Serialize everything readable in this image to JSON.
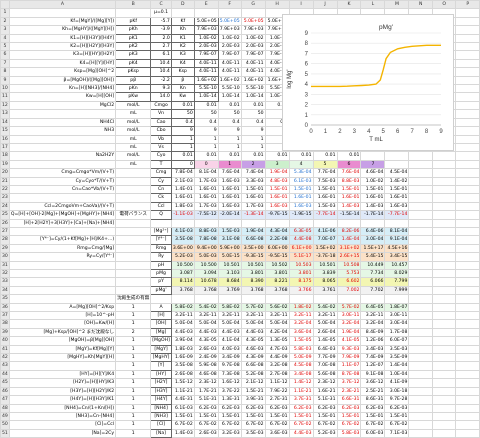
{
  "columns": [
    "A",
    "B",
    "C",
    "D",
    "E",
    "F",
    "G",
    "H",
    "I",
    "J",
    "K",
    "L",
    "M",
    "N",
    "O",
    "P",
    "Q",
    "R",
    "S",
    "T",
    "U",
    "V",
    "W",
    "X",
    "Y",
    "Z"
  ],
  "mu_label": "μ=0.1",
  "pk_rows": [
    {
      "label": "Kf=[MgY]/([Mg][Y])",
      "p": "pKf",
      "pv": "-5.7",
      "k": "Kf",
      "kv": "5.0E+05",
      "cells": [
        "5.0E+05",
        "5.0E+05",
        "5.0E+05",
        "5.0E+05",
        "5.0E+05",
        "5.0E+05",
        "5.0E+05"
      ]
    },
    {
      "label": "Kh=[MgHY]/([MgY][H])",
      "p": "pKh",
      "pv": "-3.9",
      "k": "Kh",
      "kv": "7.9E+03",
      "cells": [
        "7.9E+03",
        "7.9E+03",
        "7.9E+03",
        "7.9E+03",
        "7.9E+03",
        "7.9E+03",
        "7.9E+03"
      ]
    },
    {
      "label": "K1=[H][H3Y]/[H4Y]",
      "p": "pK1",
      "pv": "2.0",
      "k": "K1",
      "kv": "1.0E-02",
      "cells": [
        "1.0E-02",
        "1.0E-02",
        "1.0E-02",
        "1.0E-02",
        "1.0E-02",
        "1.0E-02",
        "1.0E-02"
      ]
    },
    {
      "label": "K2=[H][H2Y]/[H3Y]",
      "p": "pK2",
      "pv": "2.7",
      "k": "K2",
      "kv": "2.0E-03",
      "cells": [
        "2.0E-03",
        "2.0E-03",
        "2.0E-03",
        "2.0E-03",
        "2.0E-03",
        "2.0E-03",
        "2.0E-03"
      ]
    },
    {
      "label": "K3=[H][HY]/[H2Y]",
      "p": "pK3",
      "pv": "6.1",
      "k": "K3",
      "kv": "7.9E-07",
      "cells": [
        "7.9E-07",
        "7.9E-07",
        "7.9E-07",
        "7.9E-07",
        "7.9E-07",
        "7.9E-07",
        "7.9E-07"
      ]
    },
    {
      "label": "K4=[H][Y]/[HY]",
      "p": "pK4",
      "pv": "10.4",
      "k": "K4",
      "kv": "4.0E-11",
      "cells": [
        "4.0E-11",
        "4.0E-11",
        "4.0E-11",
        "4.0E-11",
        "4.0E-11",
        "4.0E-11",
        "4.0E-11"
      ]
    },
    {
      "label": "Ksp=[Mg][OH]^2",
      "p": "pKsp",
      "pv": "10.4",
      "k": "Ksp",
      "kv": "4.0E-11",
      "cells": [
        "4.0E-11",
        "4.0E-11",
        "4.0E-11",
        "4.0E-11",
        "4.0E-11",
        "4.0E-11",
        "4.0E-11"
      ]
    },
    {
      "label": "β=[MgOH]/([Mg][OH])",
      "p": "pβ",
      "pv": "-2.2",
      "k": "β",
      "kv": "1.6E+02",
      "cells": [
        "1.6E+02",
        "1.6E+02",
        "1.6E+02",
        "1.6E+02",
        "1.6E+02",
        "1.6E+02",
        "1.6E+02"
      ]
    },
    {
      "label": "Kn=[H][NH3]/[NH4]",
      "p": "pKn",
      "pv": "9.3",
      "k": "Kn",
      "kv": "5.5E-10",
      "cells": [
        "5.5E-10",
        "5.5E-10",
        "5.5E-10",
        "5.5E-10",
        "5.5E-10",
        "5.5E-10",
        "5.5E-10"
      ]
    },
    {
      "label": "Kw=[H][OH]",
      "p": "pKw",
      "pv": "14.0",
      "k": "Kw",
      "kv": "1.0E-14",
      "cells": [
        "1.0E-14",
        "1.0E-14",
        "1.0E-14",
        "1.0E-14",
        "1.0E-14",
        "1.0E-14",
        "1.0E-14"
      ]
    }
  ],
  "conc_rows": [
    {
      "name": "MgCl2",
      "unit": "mol/L",
      "sym": "Cmgo",
      "val": "0.01",
      "cells": [
        "0.01",
        "0.01",
        "0.01",
        "0.01",
        "0.01",
        "0.01",
        "0.01"
      ]
    },
    {
      "name": "",
      "unit": "mL",
      "sym": "Vn",
      "val": "50",
      "cells": [
        "50",
        "50",
        "50",
        "50",
        "50",
        "50",
        "50"
      ]
    },
    {
      "name": "NH4Cl",
      "unit": "mol/L",
      "sym": "Cao",
      "val": "0.4",
      "cells": [
        "0.4",
        "0.4",
        "0.4",
        "0.4",
        "0.4",
        "0.4",
        "0.4"
      ]
    },
    {
      "name": "NH3",
      "unit": "mol/L",
      "sym": "Cbo",
      "val": "9",
      "cells": [
        "9",
        "9",
        "9",
        "9",
        "9",
        "9",
        "9"
      ]
    },
    {
      "name": "",
      "unit": "mL",
      "sym": "Vb",
      "val": "1",
      "cells": [
        "1",
        "1",
        "1",
        "1",
        "1",
        "1",
        "1"
      ]
    },
    {
      "name": "",
      "unit": "mL",
      "sym": "Vs",
      "val": "1",
      "cells": [
        "1",
        "1",
        "1",
        "1",
        "1",
        "1",
        "1"
      ]
    },
    {
      "name": "Na2H2Y",
      "unit": "mol/L",
      "sym": "Cyo",
      "val": "0.01",
      "cells": [
        "0.01",
        "0.01",
        "0.01",
        "0.01",
        "0.01",
        "0.01",
        "0.01"
      ]
    },
    {
      "name": "",
      "unit": "mL",
      "sym": "T",
      "val": "0",
      "cells": [
        "0",
        "1",
        "2",
        "3",
        "4",
        "5",
        "6",
        "7"
      ]
    }
  ],
  "eq_rows": [
    {
      "label": "Cmg=Cmgo*Vm/(V+T)",
      "sym": "Cmg",
      "cells": [
        "7.8E-04",
        "8.1E-04",
        "7.6E-04",
        "7.4E-04",
        "1.9E-04",
        "5.3E-04",
        "7.7E-04",
        "7.6E-04",
        "4.6E-04",
        "4.5E-04"
      ]
    },
    {
      "label": "Cy=Cyo*T/(V+T)",
      "sym": "Cy",
      "cells": [
        "2.1E-03",
        "1.7E-03",
        "1.6E-03",
        "3.3E-03",
        "4.8E-03",
        "6.1E-03",
        "7.5E-03",
        "8.8E-03",
        "1.0E-02",
        "1.4E-02"
      ]
    },
    {
      "label": "Cn=Cao*Vb/(V+T)",
      "sym": "Cn",
      "cells": [
        "1.4E-01",
        "1.6E-01",
        "1.6E-01",
        "1.5E-01",
        "1.5E-01",
        "1.5E-01",
        "1.5E-01",
        "1.5E-01",
        "1.5E-01",
        "1.5E-01"
      ]
    },
    {
      "label": "",
      "sym": "Ck",
      "cells": [
        "1.6E-01",
        "1.6E-01",
        "1.6E-01",
        "1.6E-01",
        "1.6E-01",
        "1.6E-01",
        "1.6E-01",
        "1.6E-01",
        "1.6E-01",
        "1.6E-01"
      ]
    },
    {
      "label": "Ccl=2CmgoVm+CaoVa)/(V+T)",
      "sym": "Ccl",
      "cells": [
        "1.8E-03",
        "1.7E-03",
        "1.6E-03",
        "1.7E-03",
        "1.6E-03",
        "1.6E-03",
        "1.5E-03",
        "1.4E-03",
        "1.4E-03",
        "1.6E-03"
      ]
    }
  ],
  "balance_label": "電荷バランス",
  "q_row": {
    "label": "Q=[H]+[OH]-2[Mg]+[MgOH]+[MgHY]+[NH4]",
    "sym": "Q",
    "cells": [
      "-1.1E-03",
      "-7.5E-12",
      "-2.0E-14",
      "-1.3E-14",
      "-9.7E-15",
      "-1.9E-15",
      "-7.7E-14",
      "-1.5E-14",
      "-1.7E-14",
      "-7.7E-14"
    ]
  },
  "q_row2": "[H]+2[H2Y]+3[H3Y]+[Ca]+[Na]+[NH4]",
  "bal_rows": [
    {
      "label": "",
      "sym": "[Mg²⁺]",
      "cells": [
        "4.1E-03",
        "8.8E-03",
        "1.5E-03",
        "1.9E-04",
        "4.3E-04",
        "6.3E-05",
        "4.1E-06",
        "8.2E-06",
        "6.4E-06",
        "8.1E-04"
      ]
    },
    {
      "label": "[Y⁴⁻]=Cy/(1+Kf[Mg]+[H]/K4+...)",
      "sym": "[Y⁴⁻]",
      "cells": [
        "3.5E-08",
        "7.8E-08",
        "3.1E-08",
        "6.6E-08",
        "2.2E-08",
        "4.4E-08",
        "7.0E-07",
        "1.4E-04",
        "3.0E-04",
        "9.1E-04"
      ]
    },
    {
      "label": "Rmg=Cmg/[Mg]",
      "sym": "Rmg",
      "cells": [
        "3.6E+00",
        "9.4E+00",
        "5.9E+00",
        "3.5E+00",
        "6.0E+00",
        "6.1E+00",
        "1.5E+02",
        "3.1E+02",
        "1.5E+17",
        "4.5E+16"
      ]
    },
    {
      "label": "Ry=Cy/[Y⁴⁻]",
      "sym": "Ry",
      "cells": [
        "5.2E-03",
        "5.0E-03",
        "5.0E-15",
        "-9.3E-15",
        "-9.5E-15",
        "5.1E-17",
        "-3.7E-18",
        "2.6E+15",
        "5.4E-15",
        "3.4E-15"
      ]
    },
    {
      "label": "",
      "sym": "pH",
      "cells": [
        "10.500",
        "10.500",
        "10.501",
        "10.501",
        "10.502",
        "10.503",
        "10.501",
        "10.508",
        "10.449",
        "10.457"
      ]
    },
    {
      "label": "",
      "sym": "pMg",
      "cells": [
        "3.087",
        "3.094",
        "3.103",
        "3.801",
        "3.801",
        "3.801",
        "3.839",
        "5.753",
        "7.734",
        "8.029"
      ]
    },
    {
      "label": "",
      "sym": "pY",
      "cells": [
        "8.114",
        "10.678",
        "8.684",
        "8.390",
        "8.221",
        "8.175",
        "8.065",
        "6.602",
        "6.066",
        "7.799"
      ]
    },
    {
      "label": "",
      "sym": "pMg'",
      "cells": [
        "3.768",
        "3.768",
        "3.769",
        "3.768",
        "3.768",
        "3.766",
        "3.761",
        "7.002",
        "7.702",
        "7.999"
      ]
    }
  ],
  "precip_header": "沈殿生成の有無",
  "precip_rows": [
    {
      "label": "A=[Mg][OH]^2/Ksp",
      "n": "1",
      "sym": "A",
      "cells": [
        "5.8E-02",
        "5.4E-02",
        "5.8E-02",
        "5.7E-02",
        "5.6E-02",
        "1.8E-02",
        "5.4E-02",
        "5.7E-02",
        "6.4E-05",
        "1.8E-07"
      ]
    },
    {
      "label": "[H]=10^-pH",
      "n": "1",
      "sym": "[H]",
      "cells": [
        "3.2E-11",
        "3.2E-11",
        "3.2E-11",
        "3.2E-11",
        "3.2E-11",
        "3.2E-11",
        "3.2E-11",
        "3.0E-11",
        "3.2E-11",
        "3.0E-11"
      ]
    },
    {
      "label": "[OH]=Kw/[H]",
      "n": "1",
      "sym": "[OH]",
      "cells": [
        "5.0E-04",
        "5.0E-04",
        "5.0E-04",
        "5.0E-04",
        "5.0E-04",
        "3.2E-04",
        "5.0E-04",
        "3.2E-04",
        "3.2E-04",
        "3.0E-04"
      ]
    },
    {
      "label": "[Mg]+Ksp/[OH]^2 まだ沈殿なし",
      "n": "2",
      "sym": "[Mg]",
      "cells": [
        "4.4E-03",
        "4.4E-03",
        "4.4E-03",
        "4.4E-03",
        "4.2E-04",
        "3.6E-04",
        "2.6E-04",
        "1.9E-04",
        "8.4E-09",
        "1.7E-08"
      ]
    },
    {
      "label": "[MgOH]=β[Mg][OH]",
      "n": "1",
      "sym": "[MgOH]",
      "cells": [
        "3.9E-04",
        "4.3E-05",
        "4.1E-04",
        "4.3E-05",
        "1.3E-05",
        "1.5E-05",
        "1.4E-05",
        "4.1E-05",
        "1.2E-06",
        "6.0E-07"
      ]
    },
    {
      "label": "[MgY]=Kf[Mg][Y]",
      "n": "1",
      "sym": "[MgY]",
      "cells": [
        "1.8E-03",
        "2.6E-03",
        "4.0E-03",
        "4.6E-03",
        "4.7E-03",
        "5.8E-03",
        "6.4E-03",
        "9.3E-03",
        "3.4E-03",
        "3.5E-03"
      ]
    },
    {
      "label": "[MgHY]=Kh[MgY][H]",
      "n": "1",
      "sym": "[MgHY]",
      "cells": [
        "1.6E-09",
        "2.4E-09",
        "3.4E-09",
        "4.3E-09",
        "4.4E-09",
        "5.0E-09",
        "7.7E-09",
        "7.9E-09",
        "7.4E-09",
        "3.5E-09"
      ]
    },
    {
      "label": "",
      "n": "1",
      "sym": "[Y]",
      "cells": [
        "3.5E-08",
        "5.9E-08",
        "9.7E-08",
        "6.6E-08",
        "3.2E-08",
        "4.5E-08",
        "7.0E-08",
        "1.1E-07",
        "1.2E-07",
        "1.4E-04"
      ]
    },
    {
      "label": "[HY]=[H][Y]/K4",
      "n": "1",
      "sym": "[HY]",
      "cells": [
        "2.6E-08",
        "4.6E-08",
        "7.3E-08",
        "5.2E-08",
        "2.7E-08",
        "3.4E-08",
        "5.6E-08",
        "8.7E-08",
        "9.1E-08",
        "1.0E-04"
      ]
    },
    {
      "label": "[H2Y]=[H][HY]/K3",
      "n": "1",
      "sym": "[H2Y]",
      "cells": [
        "1.5E-12",
        "2.3E-12",
        "1.6E-12",
        "2.1E-12",
        "1.1E-12",
        "1.4E-12",
        "2.3E-12",
        "3.7E-12",
        "3.6E-12",
        "4.1E-09"
      ]
    },
    {
      "label": "[H3Y]=[H][H2Y]/K2",
      "n": "1",
      "sym": "[H3Y]",
      "cells": [
        "1.1E-21",
        "1.7E-21",
        "3.7E-22",
        "1.5E-21",
        "7.9E-22",
        "1.1E-21",
        "1.6E-21",
        "2.3E-21",
        "2.5E-21",
        "3.0E-18"
      ]
    },
    {
      "label": "[H4Y]=[H][H3Y]/K1",
      "n": "1",
      "sym": "[H4Y]",
      "cells": [
        "4.4E-31",
        "5.1E-31",
        "1.3E-31",
        "3.9E-31",
        "2.7E-31",
        "3.7E-31",
        "5.1E-31",
        "6.6E-31",
        "8.6E-31",
        "9.7E-28"
      ]
    },
    {
      "label": "[NH4]=Cn/(1+Kn/[H])",
      "n": "1",
      "sym": "[NH4]",
      "cells": [
        "6.1E-03",
        "6.2E-03",
        "6.2E-03",
        "6.2E-03",
        "6.2E-03",
        "6.2E-03",
        "6.2E-03",
        "6.2E-03",
        "6.2E-03",
        "6.2E-03"
      ]
    },
    {
      "label": "[NH3]=Cn-[NH4]",
      "n": "1",
      "sym": "[NH3]",
      "cells": [
        "1.5E-01",
        "1.5E-01",
        "1.5E-01",
        "1.5E-01",
        "1.5E-01",
        "1.5E-01",
        "1.5E-01",
        "1.5E-01",
        "1.5E-01",
        "1.5E-01"
      ]
    },
    {
      "label": "[Cl]=Ccl",
      "n": "1",
      "sym": "[Cl]",
      "cells": [
        "6.7E-02",
        "6.7E-02",
        "6.7E-02",
        "6.7E-02",
        "6.7E-02",
        "6.7E-02",
        "6.7E-02",
        "6.7E-02",
        "6.7E-02",
        "6.7E-02"
      ]
    },
    {
      "label": "[Na]=2Cy",
      "n": "1",
      "sym": "[Na]",
      "cells": [
        "1.4E-03",
        "2.6E-03",
        "3.2E-03",
        "3.5E-03",
        "3.6E-03",
        "4.4E-03",
        "5.2E-03",
        "5.8E-03",
        "6.0E-03",
        "7.1E-03"
      ]
    }
  ],
  "chart_data": {
    "type": "line",
    "title": "pMg'",
    "xlabel": "T mL",
    "ylabel": "log Mg'",
    "xlim": [
      0,
      9
    ],
    "ylim": [
      0,
      9
    ],
    "xticks": [
      0,
      1,
      2,
      3,
      4,
      5,
      6,
      7,
      8,
      9
    ],
    "yticks": [
      0,
      1,
      2,
      3,
      4,
      5,
      6,
      7,
      8,
      9
    ],
    "series": [
      {
        "color": "#f4b400",
        "x": [
          0,
          0.5,
          1,
          1.5,
          2,
          2.5,
          3,
          3.5,
          4,
          4.5,
          4.8,
          5,
          5.2,
          5.5,
          6,
          6.5,
          7,
          7.5,
          8,
          8.5,
          9
        ],
        "y": [
          3.78,
          3.78,
          3.78,
          3.78,
          3.78,
          3.8,
          3.83,
          3.86,
          3.9,
          4.0,
          4.4,
          5.4,
          6.5,
          7.1,
          7.45,
          7.6,
          7.7,
          7.75,
          7.8,
          7.8,
          7.8
        ]
      }
    ]
  }
}
